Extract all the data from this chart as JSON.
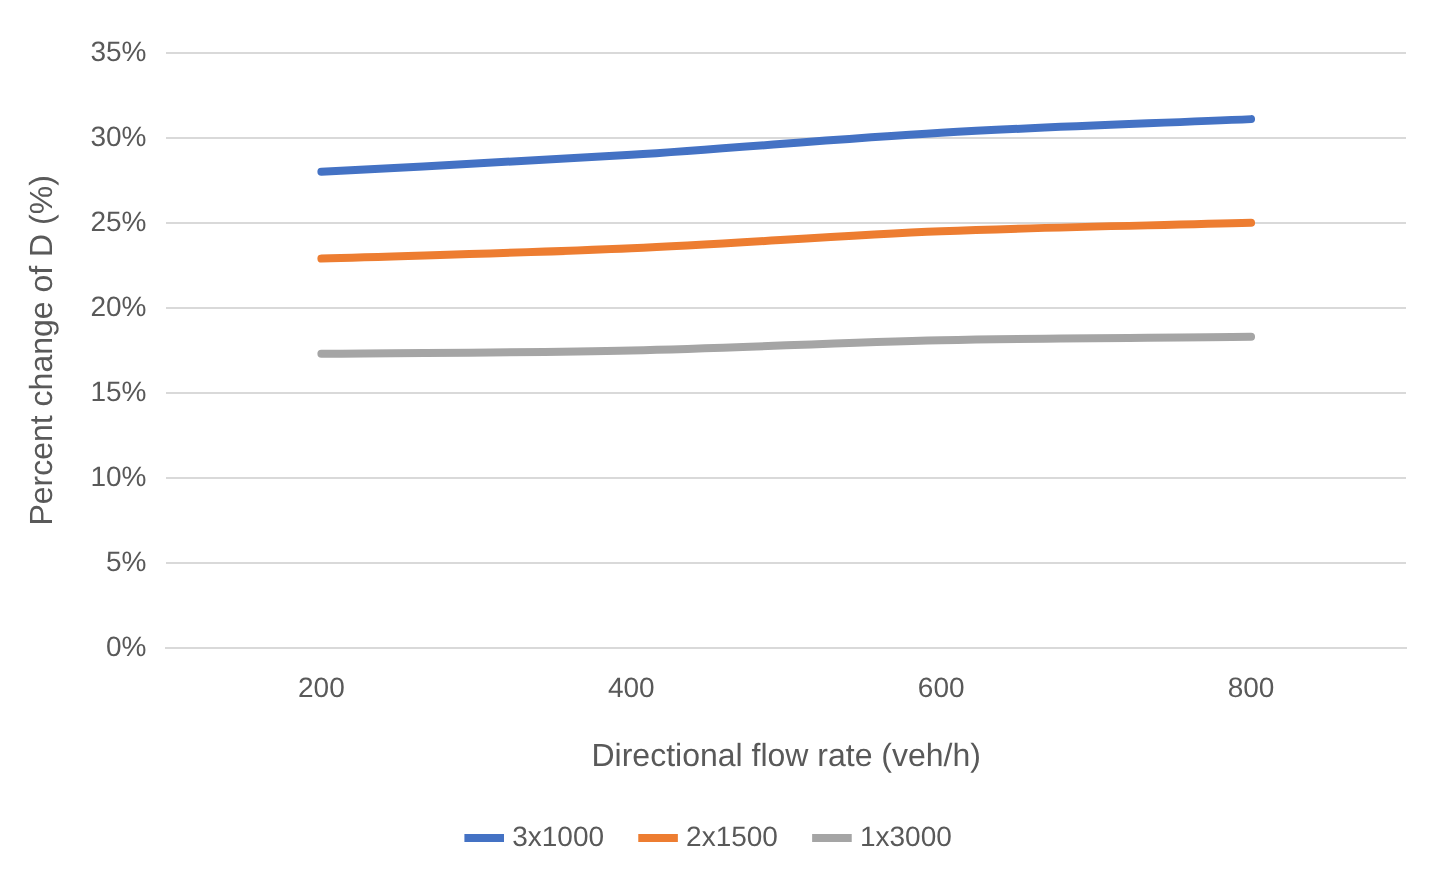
{
  "chart_data": {
    "type": "line",
    "xlabel": "Directional flow rate (veh/h)",
    "ylabel": "Percent change of D (%)",
    "categories": [
      "200",
      "400",
      "600",
      "800"
    ],
    "series": [
      {
        "name": "3x1000",
        "color": "#4472c4",
        "values": [
          28,
          29,
          30.3,
          31.1
        ]
      },
      {
        "name": "2x1500",
        "color": "#ed7d31",
        "values": [
          22.9,
          23.5,
          24.5,
          25
        ]
      },
      {
        "name": "1x3000",
        "color": "#a5a5a5",
        "values": [
          17.3,
          17.5,
          18.1,
          18.3
        ]
      }
    ],
    "ylim": [
      0,
      35
    ],
    "yticks": [
      {
        "value": 0,
        "label": "0%"
      },
      {
        "value": 5,
        "label": "5%"
      },
      {
        "value": 10,
        "label": "10%"
      },
      {
        "value": 15,
        "label": "15%"
      },
      {
        "value": 20,
        "label": "20%"
      },
      {
        "value": 25,
        "label": "25%"
      },
      {
        "value": 30,
        "label": "30%"
      },
      {
        "value": 35,
        "label": "35%"
      }
    ],
    "grid": "y",
    "legend": "bottom",
    "marker": "none",
    "line_style": "solid"
  }
}
